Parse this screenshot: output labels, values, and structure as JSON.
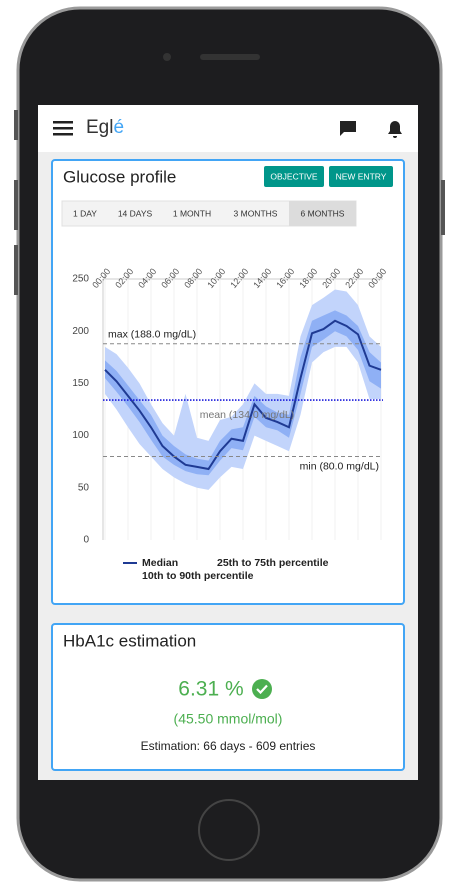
{
  "app_bar": {
    "brand_prefix": "Egl",
    "brand_accent": "é"
  },
  "glucose_card": {
    "title": "Glucose profile",
    "buttons": [
      "OBJECTIVE",
      "NEW ENTRY"
    ],
    "tabs": [
      "1 DAY",
      "14 DAYS",
      "1 MONTH",
      "3 MONTHS",
      "6 MONTHS"
    ],
    "selected_tab": 4
  },
  "chart_data": {
    "type": "band",
    "x": [
      0,
      1,
      2,
      3,
      4,
      5,
      6,
      7,
      8,
      9,
      10,
      11,
      12,
      13,
      14,
      15,
      16,
      17,
      18,
      19,
      20,
      21,
      22,
      23,
      24
    ],
    "xlim": [
      0,
      24
    ],
    "xticks": [
      {
        "value": 0,
        "label": "00:00"
      },
      {
        "value": 2,
        "label": "02:00"
      },
      {
        "value": 4,
        "label": "04:00"
      },
      {
        "value": 6,
        "label": "06:00"
      },
      {
        "value": 8,
        "label": "08:00"
      },
      {
        "value": 10,
        "label": "10:00"
      },
      {
        "value": 12,
        "label": "12:00"
      },
      {
        "value": 14,
        "label": "14:00"
      },
      {
        "value": 16,
        "label": "16:00"
      },
      {
        "value": 18,
        "label": "18:00"
      },
      {
        "value": 20,
        "label": "20:00"
      },
      {
        "value": 22,
        "label": "22:00"
      },
      {
        "value": 24,
        "label": "00:00"
      }
    ],
    "ylim": [
      0,
      250
    ],
    "yticks": [
      0,
      50,
      100,
      150,
      200,
      250
    ],
    "series": [
      {
        "name": "Median",
        "color": "#1f3a93",
        "values": [
          163,
          152,
          138,
          124,
          108,
          90,
          80,
          72,
          70,
          68,
          85,
          97,
          95,
          130,
          117,
          113,
          108,
          155,
          198,
          202,
          210,
          205,
          197,
          167,
          163
        ]
      }
    ],
    "bands": [
      {
        "name": "10th to 90th percentile",
        "color": "#c2d4fb",
        "lower": [
          140,
          125,
          108,
          92,
          80,
          68,
          60,
          54,
          50,
          48,
          60,
          70,
          68,
          100,
          95,
          90,
          85,
          120,
          170,
          180,
          185,
          185,
          170,
          135,
          135
        ],
        "upper": [
          185,
          178,
          165,
          150,
          130,
          112,
          100,
          140,
          98,
          95,
          115,
          118,
          130,
          150,
          140,
          140,
          138,
          195,
          225,
          232,
          240,
          238,
          225,
          195,
          185
        ]
      },
      {
        "name": "25th to 75th percentile",
        "color": "#8fb0f5",
        "lower": [
          155,
          142,
          128,
          113,
          96,
          80,
          72,
          66,
          63,
          62,
          76,
          88,
          86,
          118,
          108,
          105,
          98,
          140,
          185,
          192,
          200,
          195,
          182,
          152,
          145
        ],
        "upper": [
          172,
          162,
          148,
          134,
          120,
          100,
          90,
          82,
          78,
          76,
          95,
          106,
          108,
          138,
          128,
          122,
          120,
          175,
          210,
          215,
          220,
          215,
          205,
          180,
          170
        ]
      }
    ],
    "reference_lines": [
      {
        "value": 188,
        "label": "max (188.0 mg/dL)",
        "color": "#888888",
        "style": "dashed"
      },
      {
        "value": 134,
        "label": "mean (134.0 mg/dL)",
        "color": "#1a1adb",
        "style": "dotted"
      },
      {
        "value": 80,
        "label": "min (80.0 mg/dL)",
        "color": "#888888",
        "style": "dashed"
      }
    ]
  },
  "hba1c_card": {
    "title": "HbA1c estimation",
    "value": "6.31 %",
    "mmol": "(45.50 mmol/mol)",
    "detail": "Estimation: 66 days - 609 entries"
  }
}
